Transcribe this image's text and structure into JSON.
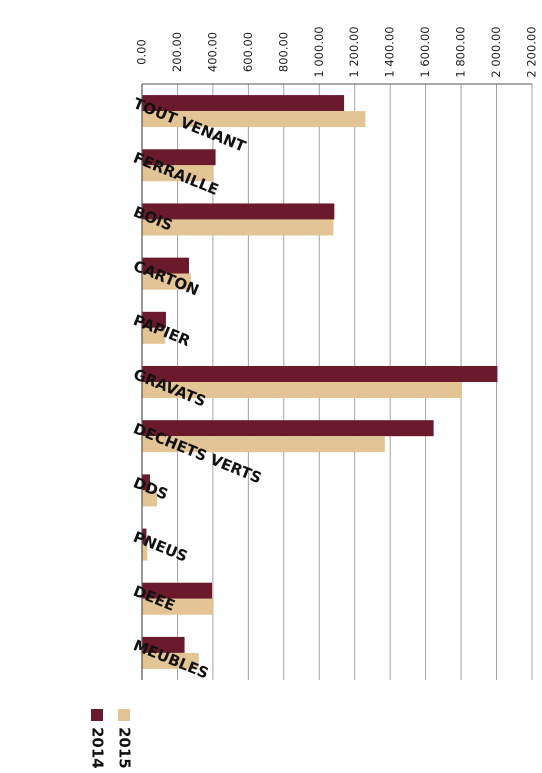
{
  "chart_data": {
    "type": "bar",
    "orientation": "horizontal",
    "categories": [
      "TOUT VENANT",
      "FERRAILLE",
      "BOIS",
      "CARTON",
      "PAPIER",
      "GRAVATS",
      "DECHETS VERTS",
      "DDS",
      "PNEUS",
      "DEEE",
      "MEUBLES"
    ],
    "series": [
      {
        "name": "2014",
        "color": "#6b1a2b",
        "values": [
          1140,
          415,
          1085,
          265,
          135,
          2005,
          1645,
          45,
          25,
          395,
          240
        ]
      },
      {
        "name": "2015",
        "color": "#e3c595",
        "values": [
          1260,
          400,
          1080,
          275,
          130,
          1805,
          1370,
          85,
          30,
          400,
          320
        ]
      }
    ],
    "tick_labels": [
      "0.00",
      "200.00",
      "400.00",
      "600.00",
      "800.00",
      "1 000.00",
      "1 200.00",
      "1 400.00",
      "1 600.00",
      "1 800.00",
      "2 000.00",
      "2 200.00"
    ],
    "xlim": [
      0,
      2200
    ],
    "grid": true,
    "legend": "bottom",
    "title": "",
    "xlabel": "",
    "ylabel": ""
  }
}
